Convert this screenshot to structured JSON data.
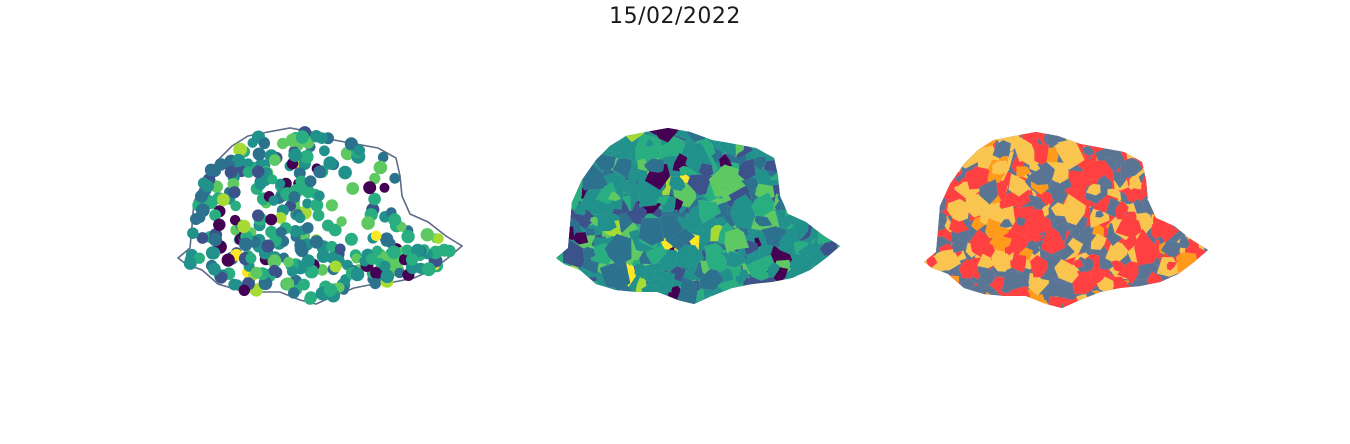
{
  "figure": {
    "title": "15/02/2022"
  },
  "panels": [
    {
      "id": "points",
      "kind": "point-markers",
      "colormap": "viridis"
    },
    {
      "id": "choropleth-viridis",
      "kind": "choropleth",
      "colormap": "viridis"
    },
    {
      "id": "choropleth-categorical",
      "kind": "choropleth",
      "palette": [
        "#ff4040",
        "#5a7594",
        "#f9c54f",
        "#ff9a1a"
      ]
    }
  ],
  "colors": {
    "outline": "#5d6c87",
    "viridis": [
      "#440154",
      "#3b528b",
      "#2c728e",
      "#21918c",
      "#28ae80",
      "#5ec962",
      "#a6db35",
      "#fde725"
    ]
  }
}
